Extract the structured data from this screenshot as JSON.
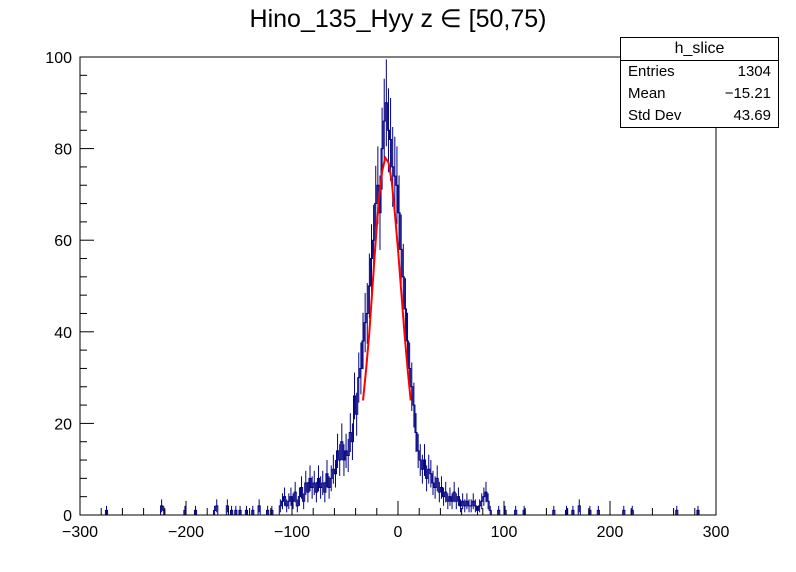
{
  "title": "Hino_135_Hyy z  ∈ [50,75)",
  "stats_box": {
    "name": "h_slice",
    "rows": [
      {
        "key": "Entries",
        "value": "1304"
      },
      {
        "key": "Mean",
        "value": "−15.21"
      },
      {
        "key": "Std Dev",
        "value": "43.69"
      }
    ]
  },
  "colors": {
    "histogram": "#000080",
    "fit": "#ff0000",
    "frame": "#000000"
  },
  "chart_data": {
    "type": "histogram",
    "title": "Hino_135_Hyy z  ∈ [50,75)",
    "xlabel": "",
    "ylabel": "",
    "xlim": [
      -300,
      300
    ],
    "ylim": [
      0,
      100
    ],
    "x_ticks": [
      -300,
      -200,
      -100,
      0,
      100,
      200,
      300
    ],
    "x_tick_labels": [
      "−300",
      "−200",
      "−100",
      "0",
      "100",
      "200",
      "300"
    ],
    "y_ticks": [
      0,
      20,
      40,
      60,
      80,
      100
    ],
    "y_tick_labels": [
      "0",
      "20",
      "40",
      "60",
      "80",
      "100"
    ],
    "bin_width": 2,
    "grid": false,
    "series": [
      {
        "style": "step with error bars",
        "points": [
          [
            -275,
            1
          ],
          [
            -223,
            2
          ],
          [
            -221,
            1
          ],
          [
            -201,
            1
          ],
          [
            -191,
            1
          ],
          [
            -173,
            1
          ],
          [
            -171,
            2
          ],
          [
            -161,
            2
          ],
          [
            -157,
            1
          ],
          [
            -153,
            1
          ],
          [
            -149,
            1
          ],
          [
            -143,
            1
          ],
          [
            -137,
            1
          ],
          [
            -131,
            2
          ],
          [
            -123,
            1
          ],
          [
            -119,
            1
          ],
          [
            -111,
            2
          ],
          [
            -109,
            3
          ],
          [
            -107,
            4
          ],
          [
            -105,
            2
          ],
          [
            -103,
            3
          ],
          [
            -101,
            4
          ],
          [
            -99,
            3
          ],
          [
            -97,
            5
          ],
          [
            -95,
            2
          ],
          [
            -93,
            4
          ],
          [
            -91,
            6
          ],
          [
            -89,
            3
          ],
          [
            -87,
            7
          ],
          [
            -85,
            5
          ],
          [
            -83,
            8
          ],
          [
            -81,
            6
          ],
          [
            -79,
            7
          ],
          [
            -77,
            5
          ],
          [
            -75,
            8
          ],
          [
            -73,
            6
          ],
          [
            -71,
            7
          ],
          [
            -69,
            5
          ],
          [
            -67,
            9
          ],
          [
            -65,
            6
          ],
          [
            -63,
            8
          ],
          [
            -61,
            10
          ],
          [
            -59,
            9
          ],
          [
            -57,
            14
          ],
          [
            -55,
            12
          ],
          [
            -53,
            16
          ],
          [
            -51,
            12
          ],
          [
            -49,
            14
          ],
          [
            -47,
            13
          ],
          [
            -45,
            18
          ],
          [
            -43,
            16
          ],
          [
            -41,
            26
          ],
          [
            -39,
            22
          ],
          [
            -37,
            30
          ],
          [
            -35,
            32
          ],
          [
            -33,
            38
          ],
          [
            -31,
            42
          ],
          [
            -29,
            44
          ],
          [
            -27,
            50
          ],
          [
            -25,
            56
          ],
          [
            -23,
            60
          ],
          [
            -21,
            68
          ],
          [
            -19,
            72
          ],
          [
            -17,
            66
          ],
          [
            -15,
            80
          ],
          [
            -13,
            86
          ],
          [
            -11,
            90
          ],
          [
            -9,
            84
          ],
          [
            -7,
            82
          ],
          [
            -5,
            76
          ],
          [
            -3,
            74
          ],
          [
            -1,
            72
          ],
          [
            1,
            66
          ],
          [
            3,
            58
          ],
          [
            5,
            52
          ],
          [
            7,
            45
          ],
          [
            9,
            38
          ],
          [
            11,
            32
          ],
          [
            13,
            28
          ],
          [
            15,
            24
          ],
          [
            17,
            18
          ],
          [
            19,
            14
          ],
          [
            21,
            12
          ],
          [
            23,
            10
          ],
          [
            25,
            12
          ],
          [
            27,
            8
          ],
          [
            29,
            10
          ],
          [
            31,
            9
          ],
          [
            33,
            7
          ],
          [
            35,
            6
          ],
          [
            37,
            8
          ],
          [
            39,
            5
          ],
          [
            41,
            6
          ],
          [
            43,
            4
          ],
          [
            45,
            5
          ],
          [
            47,
            3
          ],
          [
            49,
            4
          ],
          [
            51,
            3
          ],
          [
            53,
            5
          ],
          [
            55,
            3
          ],
          [
            57,
            4
          ],
          [
            59,
            2
          ],
          [
            61,
            3
          ],
          [
            63,
            2
          ],
          [
            65,
            3
          ],
          [
            67,
            2
          ],
          [
            69,
            2
          ],
          [
            71,
            3
          ],
          [
            73,
            2
          ],
          [
            75,
            1
          ],
          [
            77,
            2
          ],
          [
            79,
            3
          ],
          [
            81,
            4
          ],
          [
            83,
            5
          ],
          [
            85,
            3
          ],
          [
            87,
            1
          ],
          [
            95,
            1
          ],
          [
            101,
            1
          ],
          [
            111,
            1
          ],
          [
            119,
            1
          ],
          [
            147,
            1
          ],
          [
            159,
            1
          ],
          [
            165,
            1
          ],
          [
            171,
            2
          ],
          [
            181,
            1
          ],
          [
            189,
            1
          ],
          [
            213,
            1
          ],
          [
            221,
            1
          ],
          [
            263,
            1
          ],
          [
            283,
            1
          ]
        ]
      },
      {
        "style": "smooth curve",
        "points": [
          [
            -33,
            25
          ],
          [
            -30,
            32
          ],
          [
            -27,
            40
          ],
          [
            -24,
            50
          ],
          [
            -21,
            60
          ],
          [
            -18,
            69
          ],
          [
            -15,
            75
          ],
          [
            -12,
            78
          ],
          [
            -9,
            77
          ],
          [
            -6,
            73
          ],
          [
            -3,
            66
          ],
          [
            0,
            58
          ],
          [
            3,
            49
          ],
          [
            6,
            40
          ],
          [
            9,
            32
          ],
          [
            12,
            25
          ]
        ]
      }
    ]
  }
}
